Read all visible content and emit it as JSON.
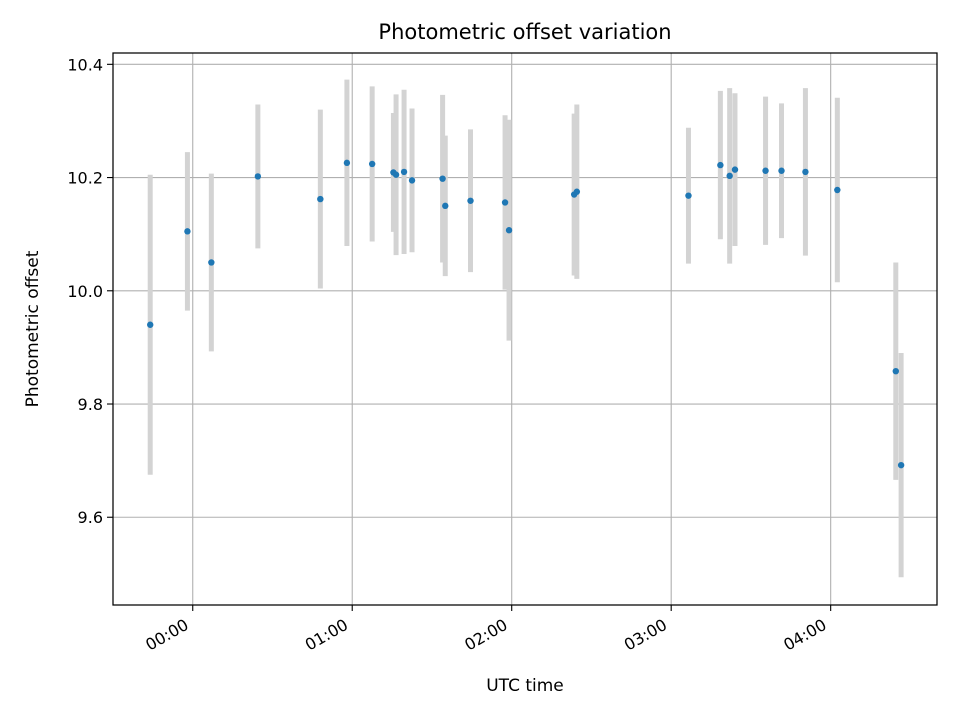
{
  "chart_data": {
    "type": "scatter",
    "title": "Photometric offset variation",
    "xlabel": "UTC time",
    "ylabel": "Photometric offset",
    "x_unit": "minutes relative to 00:00 UTC",
    "xlim": [
      -30,
      280
    ],
    "ylim": [
      9.445,
      10.42
    ],
    "x_ticks": [
      {
        "value": 0,
        "label": "00:00"
      },
      {
        "value": 60,
        "label": "01:00"
      },
      {
        "value": 120,
        "label": "02:00"
      },
      {
        "value": 180,
        "label": "03:00"
      },
      {
        "value": 240,
        "label": "04:00"
      }
    ],
    "y_ticks": [
      {
        "value": 9.6,
        "label": "9.6"
      },
      {
        "value": 9.8,
        "label": "9.8"
      },
      {
        "value": 10.0,
        "label": "10.0"
      },
      {
        "value": 10.2,
        "label": "10.2"
      },
      {
        "value": 10.4,
        "label": "10.4"
      }
    ],
    "grid": true,
    "point_color": "#1f77b4",
    "errorbar_color": "#d3d3d3",
    "points": [
      {
        "x": -16.0,
        "y": 9.94,
        "err": 0.265
      },
      {
        "x": -2.0,
        "y": 10.105,
        "err": 0.14
      },
      {
        "x": 7.0,
        "y": 10.05,
        "err": 0.157
      },
      {
        "x": 24.5,
        "y": 10.202,
        "err": 0.127
      },
      {
        "x": 48.0,
        "y": 10.162,
        "err": 0.158
      },
      {
        "x": 58.0,
        "y": 10.226,
        "err": 0.147
      },
      {
        "x": 67.5,
        "y": 10.224,
        "err": 0.137
      },
      {
        "x": 75.5,
        "y": 10.209,
        "err": 0.105
      },
      {
        "x": 76.5,
        "y": 10.205,
        "err": 0.142
      },
      {
        "x": 79.5,
        "y": 10.21,
        "err": 0.145
      },
      {
        "x": 82.5,
        "y": 10.195,
        "err": 0.127
      },
      {
        "x": 94.0,
        "y": 10.198,
        "err": 0.148
      },
      {
        "x": 95.0,
        "y": 10.15,
        "err": 0.124
      },
      {
        "x": 104.5,
        "y": 10.159,
        "err": 0.126
      },
      {
        "x": 117.5,
        "y": 10.156,
        "err": 0.154
      },
      {
        "x": 119.0,
        "y": 10.107,
        "err": 0.195
      },
      {
        "x": 143.5,
        "y": 10.17,
        "err": 0.143
      },
      {
        "x": 144.5,
        "y": 10.175,
        "err": 0.154
      },
      {
        "x": 186.5,
        "y": 10.168,
        "err": 0.12
      },
      {
        "x": 198.5,
        "y": 10.222,
        "err": 0.131
      },
      {
        "x": 202.0,
        "y": 10.203,
        "err": 0.155
      },
      {
        "x": 204.0,
        "y": 10.214,
        "err": 0.135
      },
      {
        "x": 215.5,
        "y": 10.212,
        "err": 0.131
      },
      {
        "x": 221.5,
        "y": 10.212,
        "err": 0.119
      },
      {
        "x": 230.5,
        "y": 10.21,
        "err": 0.148
      },
      {
        "x": 242.5,
        "y": 10.178,
        "err": 0.163
      },
      {
        "x": 264.5,
        "y": 9.858,
        "err": 0.192
      },
      {
        "x": 266.5,
        "y": 9.692,
        "err": 0.198
      }
    ]
  }
}
